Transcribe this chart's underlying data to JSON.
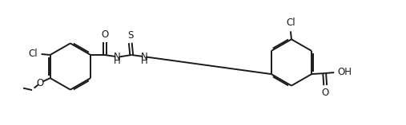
{
  "bg_color": "#ffffff",
  "line_color": "#1a1a1a",
  "line_width": 1.4,
  "font_size": 8.5,
  "fig_width": 5.07,
  "fig_height": 1.57,
  "dpi": 100,
  "xlim": [
    0,
    100
  ],
  "ylim": [
    0,
    31
  ]
}
